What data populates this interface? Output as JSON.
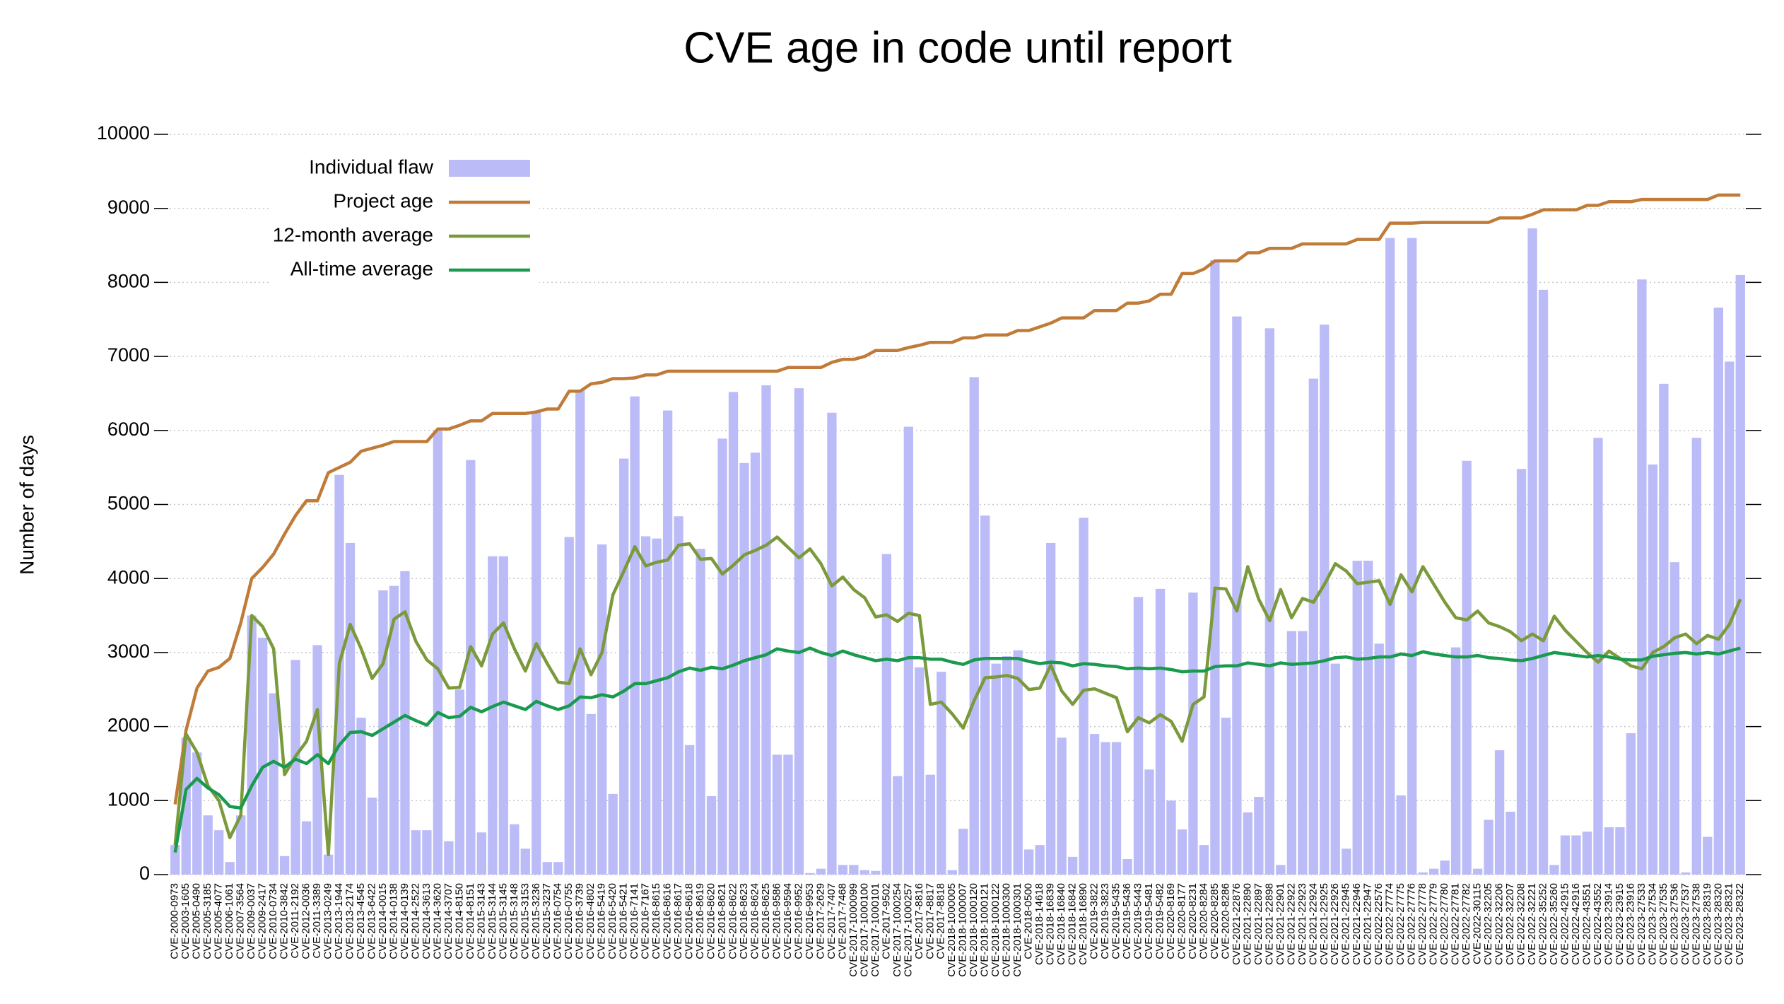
{
  "chart_data": {
    "type": "bar",
    "title": "CVE age in code until report",
    "y_label": "Number of days",
    "ylim": [
      0,
      10000
    ],
    "yticks": [
      0,
      1000,
      2000,
      3000,
      4000,
      5000,
      6000,
      7000,
      8000,
      9000,
      10000
    ],
    "grid": true,
    "legend": "upper left",
    "categories": [
      "CVE-2000-0973",
      "CVE-2003-1605",
      "CVE-2005-0490",
      "CVE-2005-3185",
      "CVE-2005-4077",
      "CVE-2006-1061",
      "CVE-2007-3564",
      "CVE-2009-0037",
      "CVE-2009-2417",
      "CVE-2010-0734",
      "CVE-2010-3842",
      "CVE-2011-2192",
      "CVE-2012-0036",
      "CVE-2011-3389",
      "CVE-2013-0249",
      "CVE-2013-1944",
      "CVE-2013-2174",
      "CVE-2013-4545",
      "CVE-2013-6422",
      "CVE-2014-0015",
      "CVE-2014-0138",
      "CVE-2014-0139",
      "CVE-2014-2522",
      "CVE-2014-3613",
      "CVE-2014-3620",
      "CVE-2014-3707",
      "CVE-2014-8150",
      "CVE-2014-8151",
      "CVE-2015-3143",
      "CVE-2015-3144",
      "CVE-2015-3145",
      "CVE-2015-3148",
      "CVE-2015-3153",
      "CVE-2015-3236",
      "CVE-2015-3237",
      "CVE-2016-0754",
      "CVE-2016-0755",
      "CVE-2016-3739",
      "CVE-2016-4802",
      "CVE-2016-5419",
      "CVE-2016-5420",
      "CVE-2016-5421",
      "CVE-2016-7141",
      "CVE-2016-7167",
      "CVE-2016-8615",
      "CVE-2016-8616",
      "CVE-2016-8617",
      "CVE-2016-8618",
      "CVE-2016-8619",
      "CVE-2016-8620",
      "CVE-2016-8621",
      "CVE-2016-8622",
      "CVE-2016-8623",
      "CVE-2016-8624",
      "CVE-2016-8625",
      "CVE-2016-9586",
      "CVE-2016-9594",
      "CVE-2016-9952",
      "CVE-2016-9953",
      "CVE-2017-2629",
      "CVE-2017-7407",
      "CVE-2017-7468",
      "CVE-2017-1000099",
      "CVE-2017-1000100",
      "CVE-2017-1000101",
      "CVE-2017-9502",
      "CVE-2017-1000254",
      "CVE-2017-1000257",
      "CVE-2017-8816",
      "CVE-2017-8817",
      "CVE-2017-8818",
      "CVE-2018-1000005",
      "CVE-2018-1000007",
      "CVE-2018-1000120",
      "CVE-2018-1000121",
      "CVE-2018-1000122",
      "CVE-2018-1000300",
      "CVE-2018-1000301",
      "CVE-2018-0500",
      "CVE-2018-14618",
      "CVE-2018-16839",
      "CVE-2018-16840",
      "CVE-2018-16842",
      "CVE-2018-16890",
      "CVE-2019-3822",
      "CVE-2019-3823",
      "CVE-2019-5435",
      "CVE-2019-5436",
      "CVE-2019-5443",
      "CVE-2019-5481",
      "CVE-2019-5482",
      "CVE-2020-8169",
      "CVE-2020-8177",
      "CVE-2020-8231",
      "CVE-2020-8284",
      "CVE-2020-8285",
      "CVE-2020-8286",
      "CVE-2021-22876",
      "CVE-2021-22890",
      "CVE-2021-22897",
      "CVE-2021-22898",
      "CVE-2021-22901",
      "CVE-2021-22922",
      "CVE-2021-22923",
      "CVE-2021-22924",
      "CVE-2021-22925",
      "CVE-2021-22926",
      "CVE-2021-22945",
      "CVE-2021-22946",
      "CVE-2021-22947",
      "CVE-2022-22576",
      "CVE-2022-27774",
      "CVE-2022-27775",
      "CVE-2022-27776",
      "CVE-2022-27778",
      "CVE-2022-27779",
      "CVE-2022-27780",
      "CVE-2022-27781",
      "CVE-2022-27782",
      "CVE-2022-30115",
      "CVE-2022-32205",
      "CVE-2022-32206",
      "CVE-2022-32207",
      "CVE-2022-32208",
      "CVE-2022-32221",
      "CVE-2022-35252",
      "CVE-2022-35260",
      "CVE-2022-42915",
      "CVE-2022-42916",
      "CVE-2022-43551",
      "CVE-2022-43552",
      "CVE-2023-23914",
      "CVE-2023-23915",
      "CVE-2023-23916",
      "CVE-2023-27533",
      "CVE-2023-27534",
      "CVE-2023-27535",
      "CVE-2023-27536",
      "CVE-2023-27537",
      "CVE-2023-27538",
      "CVE-2023-28319",
      "CVE-2023-28320",
      "CVE-2023-28321",
      "CVE-2023-28322"
    ],
    "series": [
      {
        "name": "Individual flaw",
        "type": "bar",
        "color": "#bbbbf8",
        "values": [
          400,
          1850,
          1650,
          800,
          600,
          170,
          800,
          3500,
          3200,
          2450,
          250,
          2900,
          720,
          3100,
          270,
          5400,
          4480,
          2120,
          1040,
          3840,
          3900,
          4100,
          600,
          600,
          6000,
          450,
          2500,
          5600,
          570,
          4300,
          4300,
          680,
          350,
          6250,
          170,
          170,
          4560,
          6550,
          2170,
          4460,
          1090,
          5620,
          6460,
          4570,
          4540,
          6270,
          4840,
          1750,
          4400,
          1060,
          5890,
          6520,
          5560,
          5700,
          6610,
          1620,
          1620,
          6570,
          20,
          80,
          6240,
          130,
          130,
          60,
          50,
          4330,
          1330,
          6050,
          2800,
          1350,
          2740,
          60,
          620,
          6720,
          4850,
          2850,
          2950,
          3030,
          340,
          400,
          4480,
          1850,
          240,
          4820,
          1900,
          1790,
          1790,
          210,
          3750,
          1420,
          3860,
          1000,
          610,
          3810,
          400,
          8300,
          2120,
          7540,
          840,
          1050,
          7380,
          130,
          3290,
          3290,
          6700,
          7430,
          2850,
          350,
          4240,
          4240,
          3120,
          8600,
          1070,
          8600,
          30,
          80,
          190,
          3070,
          5590,
          80,
          740,
          1680,
          850,
          5480,
          8730,
          7900,
          130,
          530,
          530,
          580,
          5900,
          640,
          640,
          1910,
          8040,
          5540,
          6630,
          4220,
          30,
          5900,
          510,
          7660,
          6930,
          8100
        ]
      },
      {
        "name": "Project age",
        "type": "line",
        "color": "#c07b38",
        "values": [
          950,
          1950,
          2520,
          2750,
          2800,
          2920,
          3400,
          4000,
          4150,
          4330,
          4600,
          4850,
          5050,
          5050,
          5430,
          5500,
          5570,
          5720,
          5760,
          5800,
          5850,
          5850,
          5850,
          5850,
          6020,
          6020,
          6070,
          6130,
          6130,
          6230,
          6230,
          6230,
          6230,
          6250,
          6290,
          6290,
          6530,
          6530,
          6630,
          6650,
          6700,
          6700,
          6710,
          6750,
          6750,
          6800,
          6800,
          6800,
          6800,
          6800,
          6800,
          6800,
          6800,
          6800,
          6800,
          6800,
          6850,
          6850,
          6850,
          6850,
          6920,
          6960,
          6960,
          7000,
          7080,
          7080,
          7080,
          7120,
          7150,
          7190,
          7190,
          7190,
          7250,
          7250,
          7290,
          7290,
          7290,
          7350,
          7350,
          7400,
          7450,
          7520,
          7520,
          7520,
          7620,
          7620,
          7620,
          7720,
          7720,
          7750,
          7840,
          7840,
          8120,
          8120,
          8180,
          8290,
          8290,
          8290,
          8400,
          8400,
          8460,
          8460,
          8460,
          8520,
          8520,
          8520,
          8520,
          8520,
          8580,
          8580,
          8580,
          8800,
          8800,
          8800,
          8810,
          8810,
          8810,
          8810,
          8810,
          8810,
          8810,
          8870,
          8870,
          8870,
          8920,
          8980,
          8980,
          8980,
          8980,
          9040,
          9040,
          9090,
          9090,
          9090,
          9120,
          9120,
          9120,
          9120,
          9120,
          9120,
          9120,
          9180,
          9180,
          9180
        ]
      },
      {
        "name": "12-month average",
        "type": "line",
        "color": "#7a9a3c",
        "values": [
          400,
          1900,
          1650,
          1200,
          1000,
          500,
          800,
          3500,
          3350,
          3050,
          1350,
          1600,
          1800,
          2230,
          270,
          2850,
          3380,
          3050,
          2650,
          2850,
          3450,
          3550,
          3150,
          2900,
          2780,
          2520,
          2530,
          3080,
          2820,
          3250,
          3400,
          3050,
          2750,
          3120,
          2850,
          2600,
          2580,
          3050,
          2700,
          3000,
          3780,
          4100,
          4430,
          4170,
          4220,
          4250,
          4450,
          4470,
          4260,
          4270,
          4060,
          4180,
          4320,
          4380,
          4450,
          4560,
          4420,
          4280,
          4400,
          4200,
          3900,
          4020,
          3850,
          3740,
          3480,
          3510,
          3420,
          3530,
          3500,
          2300,
          2330,
          2170,
          1980,
          2350,
          2660,
          2670,
          2690,
          2650,
          2500,
          2520,
          2830,
          2480,
          2300,
          2490,
          2510,
          2450,
          2390,
          1930,
          2120,
          2050,
          2160,
          2070,
          1800,
          2300,
          2400,
          3870,
          3860,
          3560,
          4160,
          3720,
          3430,
          3850,
          3470,
          3730,
          3680,
          3920,
          4200,
          4100,
          3930,
          3950,
          3970,
          3650,
          4050,
          3820,
          4160,
          3920,
          3680,
          3470,
          3440,
          3560,
          3400,
          3350,
          3280,
          3160,
          3250,
          3160,
          3490,
          3300,
          3150,
          3000,
          2870,
          3020,
          2920,
          2820,
          2780,
          3000,
          3080,
          3200,
          3250,
          3120,
          3230,
          3180,
          3380,
          3720
        ]
      },
      {
        "name": "All-time average",
        "type": "line",
        "color": "#1a9a4e",
        "values": [
          300,
          1150,
          1300,
          1170,
          1080,
          920,
          900,
          1200,
          1450,
          1530,
          1450,
          1560,
          1500,
          1620,
          1500,
          1750,
          1920,
          1930,
          1880,
          1970,
          2060,
          2150,
          2080,
          2020,
          2190,
          2120,
          2140,
          2260,
          2200,
          2270,
          2330,
          2280,
          2230,
          2340,
          2280,
          2230,
          2280,
          2400,
          2390,
          2430,
          2400,
          2480,
          2580,
          2580,
          2620,
          2660,
          2740,
          2790,
          2760,
          2800,
          2780,
          2830,
          2890,
          2930,
          2970,
          3050,
          3020,
          3000,
          3060,
          3000,
          2960,
          3020,
          2970,
          2930,
          2890,
          2910,
          2890,
          2930,
          2930,
          2910,
          2910,
          2870,
          2840,
          2900,
          2920,
          2920,
          2920,
          2920,
          2880,
          2850,
          2870,
          2860,
          2820,
          2850,
          2840,
          2820,
          2810,
          2780,
          2790,
          2780,
          2790,
          2770,
          2740,
          2750,
          2750,
          2810,
          2820,
          2820,
          2860,
          2840,
          2820,
          2860,
          2840,
          2850,
          2860,
          2890,
          2930,
          2940,
          2910,
          2920,
          2940,
          2940,
          2980,
          2960,
          3010,
          2980,
          2960,
          2940,
          2940,
          2960,
          2930,
          2920,
          2900,
          2890,
          2920,
          2960,
          3000,
          2980,
          2960,
          2940,
          2960,
          2940,
          2910,
          2900,
          2900,
          2950,
          2970,
          2990,
          3000,
          2980,
          3000,
          2980,
          3020,
          3060
        ]
      }
    ]
  }
}
